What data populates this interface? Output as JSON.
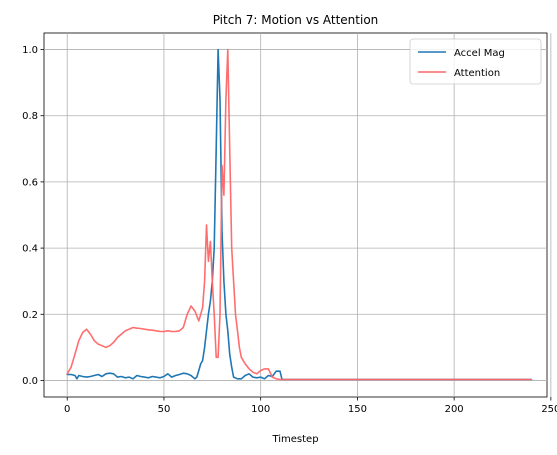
{
  "chart_data": {
    "type": "line",
    "title": "Pitch 7: Motion vs Attention",
    "xlabel": "Timestep",
    "ylabel": "",
    "xlim": [
      -12,
      248
    ],
    "ylim": [
      -0.05,
      1.05
    ],
    "xticks": [
      0,
      50,
      100,
      150,
      200,
      250
    ],
    "yticks": [
      0.0,
      0.2,
      0.4,
      0.6,
      0.8,
      1.0
    ],
    "xtick_labels": [
      "0",
      "50",
      "100",
      "150",
      "200",
      "250"
    ],
    "ytick_labels": [
      "0.0",
      "0.2",
      "0.4",
      "0.6",
      "0.8",
      "1.0"
    ],
    "grid": true,
    "legend_position": "top-right",
    "series": [
      {
        "name": "Accel Mag",
        "color": "#1f77b4",
        "x": [
          0,
          2,
          4,
          5,
          6,
          8,
          10,
          12,
          14,
          16,
          18,
          20,
          22,
          24,
          26,
          28,
          30,
          32,
          34,
          36,
          38,
          40,
          42,
          44,
          46,
          48,
          50,
          52,
          54,
          56,
          58,
          60,
          62,
          64,
          66,
          67,
          68,
          69,
          70,
          71,
          72,
          73,
          74,
          75,
          76,
          77,
          78,
          79,
          80,
          81,
          82,
          83,
          84,
          85,
          86,
          88,
          90,
          92,
          94,
          96,
          98,
          100,
          102,
          104,
          106,
          108,
          110,
          111,
          112,
          120,
          150,
          200,
          240
        ],
        "y": [
          0.018,
          0.018,
          0.015,
          0.005,
          0.015,
          0.012,
          0.01,
          0.012,
          0.015,
          0.018,
          0.012,
          0.02,
          0.022,
          0.02,
          0.01,
          0.012,
          0.008,
          0.01,
          0.005,
          0.015,
          0.012,
          0.01,
          0.008,
          0.012,
          0.01,
          0.008,
          0.012,
          0.02,
          0.01,
          0.015,
          0.018,
          0.022,
          0.02,
          0.015,
          0.005,
          0.01,
          0.03,
          0.05,
          0.06,
          0.1,
          0.15,
          0.2,
          0.24,
          0.3,
          0.4,
          0.7,
          1.0,
          0.85,
          0.45,
          0.3,
          0.2,
          0.15,
          0.08,
          0.04,
          0.01,
          0.005,
          0.005,
          0.015,
          0.02,
          0.01,
          0.008,
          0.01,
          0.005,
          0.015,
          0.012,
          0.028,
          0.028,
          0.003,
          0.003,
          0.003,
          0.003,
          0.003,
          0.003
        ]
      },
      {
        "name": "Attention",
        "color": "#ff6666",
        "x": [
          0,
          2,
          4,
          6,
          8,
          10,
          12,
          14,
          16,
          18,
          20,
          22,
          24,
          26,
          28,
          30,
          32,
          34,
          36,
          38,
          40,
          42,
          44,
          46,
          48,
          50,
          52,
          54,
          56,
          58,
          60,
          62,
          64,
          66,
          68,
          70,
          71,
          72,
          73,
          74,
          75,
          76,
          77,
          78,
          79,
          80,
          81,
          82,
          83,
          84,
          85,
          86,
          87,
          88,
          89,
          90,
          92,
          94,
          96,
          98,
          100,
          102,
          104,
          106,
          108,
          110,
          112,
          130,
          160,
          200,
          240
        ],
        "y": [
          0.02,
          0.04,
          0.08,
          0.12,
          0.145,
          0.155,
          0.14,
          0.12,
          0.11,
          0.105,
          0.1,
          0.105,
          0.115,
          0.13,
          0.14,
          0.15,
          0.155,
          0.16,
          0.158,
          0.157,
          0.155,
          0.153,
          0.152,
          0.15,
          0.148,
          0.148,
          0.15,
          0.148,
          0.148,
          0.15,
          0.16,
          0.2,
          0.225,
          0.21,
          0.18,
          0.22,
          0.3,
          0.47,
          0.36,
          0.42,
          0.3,
          0.2,
          0.07,
          0.07,
          0.2,
          0.65,
          0.56,
          0.85,
          1.0,
          0.7,
          0.4,
          0.3,
          0.2,
          0.15,
          0.1,
          0.07,
          0.05,
          0.035,
          0.025,
          0.02,
          0.03,
          0.035,
          0.035,
          0.01,
          0.005,
          0.003,
          0.003,
          0.003,
          0.003,
          0.003,
          0.003
        ]
      }
    ]
  }
}
